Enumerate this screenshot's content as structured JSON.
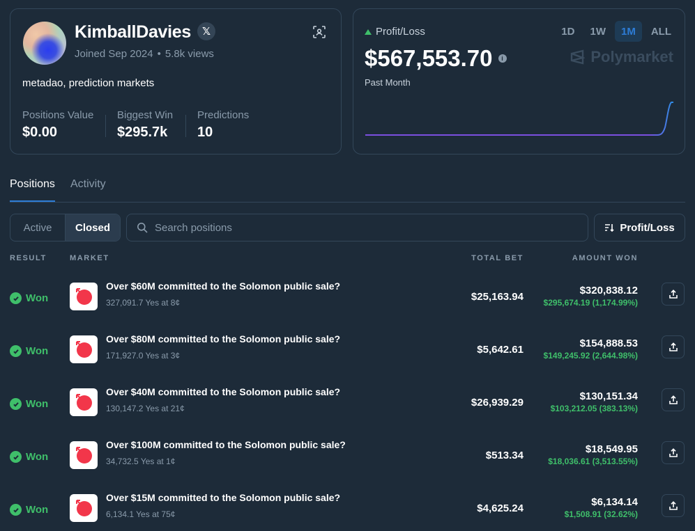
{
  "profile": {
    "username": "KimballDavies",
    "joined": "Joined Sep 2024",
    "views": "5.8k views",
    "bio": "metadao, prediction markets",
    "stats": [
      {
        "label": "Positions Value",
        "value": "$0.00"
      },
      {
        "label": "Biggest Win",
        "value": "$295.7k"
      },
      {
        "label": "Predictions",
        "value": "10"
      }
    ]
  },
  "pnl": {
    "label": "Profit/Loss",
    "value": "$567,553.70",
    "period": "Past Month",
    "ranges": [
      "1D",
      "1W",
      "1M",
      "ALL"
    ],
    "active_range": "1M",
    "brand": "Polymarket",
    "colors": {
      "up": "#3fbf6a",
      "line_start": "#7b4fe0",
      "line_end": "#2d8fe6"
    }
  },
  "tabs": [
    "Positions",
    "Activity"
  ],
  "filters": {
    "segments": [
      "Active",
      "Closed"
    ],
    "active_segment": "Closed",
    "search_placeholder": "Search positions",
    "sort_label": "Profit/Loss"
  },
  "columns": {
    "result": "RESULT",
    "market": "MARKET",
    "total_bet": "TOTAL BET",
    "amount_won": "AMOUNT WON"
  },
  "positions": [
    {
      "result": "Won",
      "title": "Over $60M committed to the Solomon public sale?",
      "sub": "327,091.7 Yes at 8¢",
      "total_bet": "$25,163.94",
      "amount_won": "$320,838.12",
      "gain": "$295,674.19 (1,174.99%)"
    },
    {
      "result": "Won",
      "title": "Over $80M committed to the Solomon public sale?",
      "sub": "171,927.0 Yes at 3¢",
      "total_bet": "$5,642.61",
      "amount_won": "$154,888.53",
      "gain": "$149,245.92 (2,644.98%)"
    },
    {
      "result": "Won",
      "title": "Over $40M committed to the Solomon public sale?",
      "sub": "130,147.2 Yes at 21¢",
      "total_bet": "$26,939.29",
      "amount_won": "$130,151.34",
      "gain": "$103,212.05 (383.13%)"
    },
    {
      "result": "Won",
      "title": "Over $100M committed to the Solomon public sale?",
      "sub": "34,732.5 Yes at 1¢",
      "total_bet": "$513.34",
      "amount_won": "$18,549.95",
      "gain": "$18,036.61 (3,513.55%)"
    },
    {
      "result": "Won",
      "title": "Over $15M committed to the Solomon public sale?",
      "sub": "6,134.1 Yes at 75¢",
      "total_bet": "$4,625.24",
      "amount_won": "$6,134.14",
      "gain": "$1,508.91 (32.62%)"
    }
  ]
}
